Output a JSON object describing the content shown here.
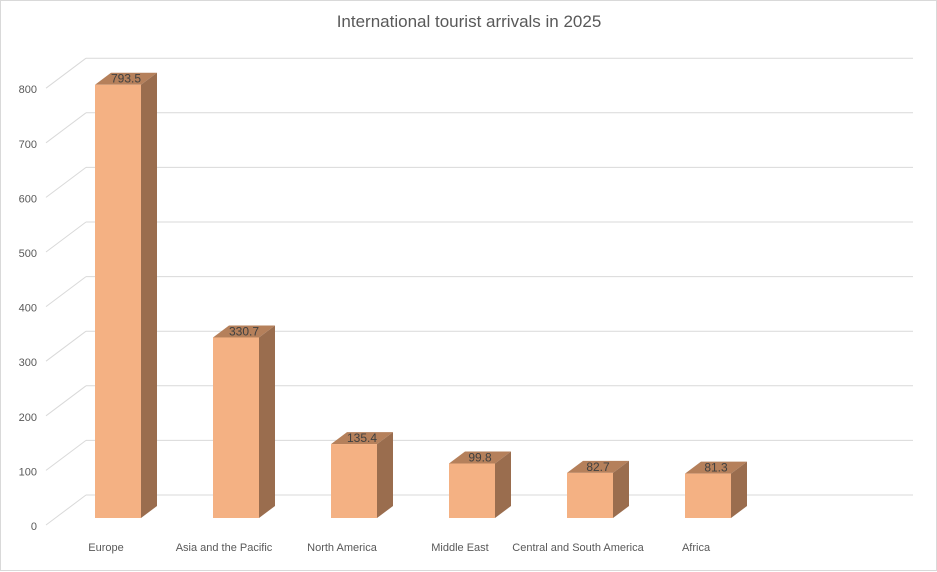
{
  "chart_data": {
    "type": "bar",
    "title": "International tourist arrivals in 2025",
    "categories": [
      "Europe",
      "Asia and the Pacific",
      "North America",
      "Middle East",
      "Central and South America",
      "Africa"
    ],
    "values": [
      793.5,
      330.7,
      135.4,
      99.8,
      82.7,
      81.3
    ],
    "data_labels": [
      "793.5",
      "330.7",
      "135.4",
      "99.8",
      "82.7",
      "81.3"
    ],
    "yticks": [
      "0",
      "100",
      "200",
      "300",
      "400",
      "500",
      "600",
      "700",
      "800"
    ],
    "ylim": [
      0,
      800
    ],
    "grid": true,
    "style": "3d-column",
    "colors": {
      "front": "#f4b183",
      "side": "#9a6d4e",
      "top": "#b5805b",
      "grid": "#d9d9d9"
    }
  }
}
